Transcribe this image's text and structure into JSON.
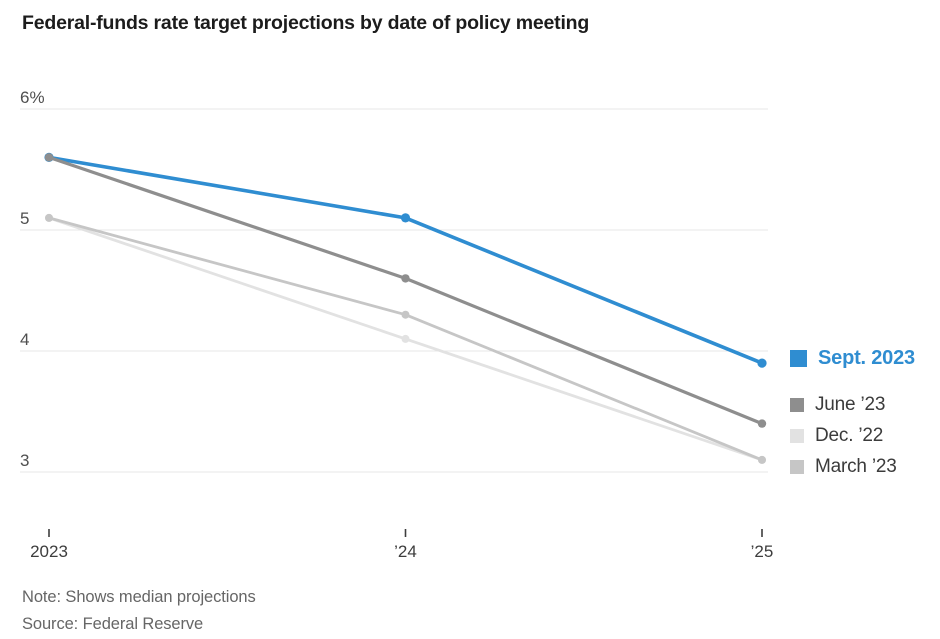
{
  "title": "Federal-funds rate target projections by date of policy meeting",
  "note": "Note: Shows median projections",
  "source": "Source: Federal Reserve",
  "colors": {
    "accent_blue": "#2f8dd1",
    "june_gray": "#8e8e8e",
    "dec_gray": "#e2e2e2",
    "march_gray": "#c6c6c6",
    "gridline": "#e7e7e7",
    "y_label": "#4f4f4f",
    "x_label": "#3d3d3d",
    "tick": "#3d3d3d",
    "title_text": "#1c1c1c",
    "footnote_text": "#666666",
    "legend_text": "#3b3b3b"
  },
  "legend": [
    {
      "label": "Sept. 2023",
      "color": "#2f8dd1",
      "emphasis": true
    },
    {
      "label": "June ’23",
      "color": "#8e8e8e",
      "emphasis": false
    },
    {
      "label": "Dec. ’22",
      "color": "#e2e2e2",
      "emphasis": false
    },
    {
      "label": "March ’23",
      "color": "#c6c6c6",
      "emphasis": false
    }
  ],
  "chart_data": {
    "type": "line",
    "title": "Federal-funds rate target projections by date of policy meeting",
    "categories": [
      "2023",
      "’24",
      "’25"
    ],
    "series": [
      {
        "name": "Sept. 2023",
        "values": [
          5.6,
          5.1,
          3.9
        ],
        "color": "#2f8dd1"
      },
      {
        "name": "June ’23",
        "values": [
          5.6,
          4.6,
          3.4
        ],
        "color": "#8e8e8e"
      },
      {
        "name": "Dec. ’22",
        "values": [
          5.1,
          4.1,
          3.1
        ],
        "color": "#e2e2e2"
      },
      {
        "name": "March ’23",
        "values": [
          5.1,
          4.3,
          3.1
        ],
        "color": "#c6c6c6"
      }
    ],
    "y_ticks": [
      {
        "value": 6,
        "label": "6%"
      },
      {
        "value": 5,
        "label": "5"
      },
      {
        "value": 4,
        "label": "4"
      },
      {
        "value": 3,
        "label": "3"
      }
    ],
    "ylabel": "",
    "xlabel": "",
    "unit": "%",
    "y_axis_range_shown": [
      3,
      6
    ],
    "grid": true,
    "markers": true,
    "legend_position": "right"
  }
}
